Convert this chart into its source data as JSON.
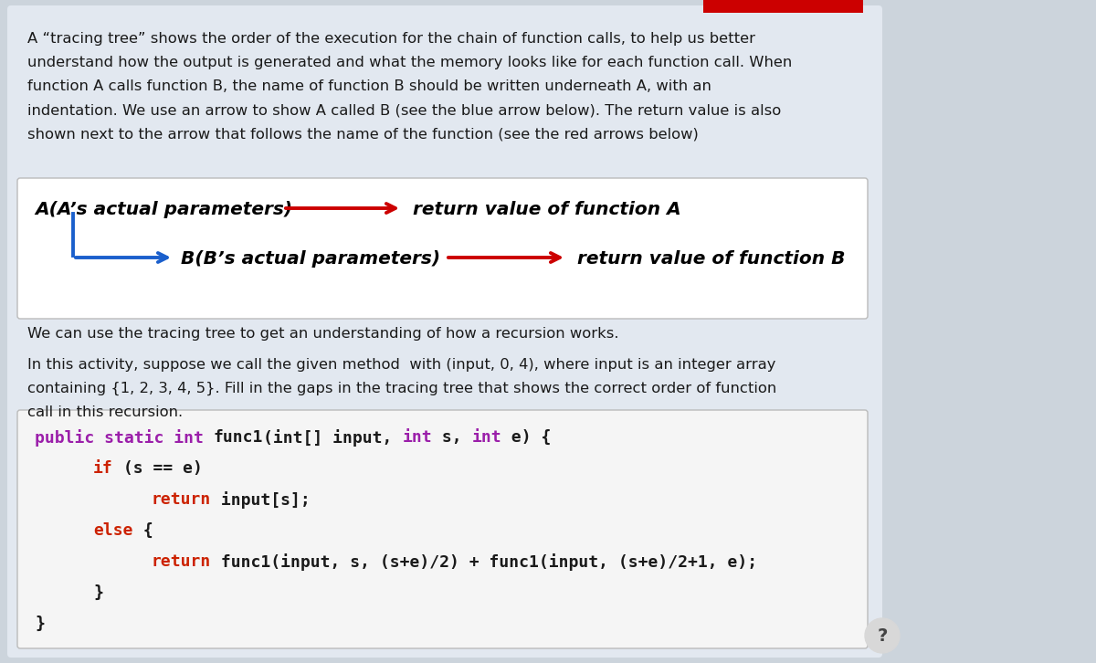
{
  "bg_outer": "#e2e8f0",
  "bg_inner_box": "#ffffff",
  "text_color": "#1a1a1a",
  "blue_arrow_color": "#1a5fcc",
  "red_arrow_color": "#cc0000",
  "keyword_color": "#9b1faa",
  "keyword2_color": "#cc2200",
  "normal_color": "#1a1a1a",
  "desc_text": [
    "A “tracing tree” shows the order of the execution for the chain of function calls, to help us better",
    "understand how the output is generated and what the memory looks like for each function call. When",
    "function A calls function B, the name of function B should be written underneath A, with an",
    "indentation. We use an arrow to show A called B (see the blue arrow below). The return value is also",
    "shown next to the arrow that follows the name of the function (see the red arrows below)"
  ],
  "middle_text_1": "We can use the tracing tree to get an understanding of how a recursion works.",
  "middle_text_2a": "In this activity, suppose we call the given method  with (input, 0, 4), where input is an integer array",
  "middle_text_2b": "containing {1, 2, 3, 4, 5}. Fill in the gaps in the tracing tree that shows the correct order of function",
  "middle_text_2c": "call in this recursion.",
  "diagram_A_text": "A(A’s actual parameters)",
  "diagram_A_return": "return value of function A",
  "diagram_B_text": "B(B’s actual parameters)",
  "diagram_B_return": "return value of function B",
  "top_bar_color": "#cc0000",
  "outer_bg_color": "#ccd4dc",
  "figsize": [
    12.0,
    7.26
  ],
  "dpi": 100
}
